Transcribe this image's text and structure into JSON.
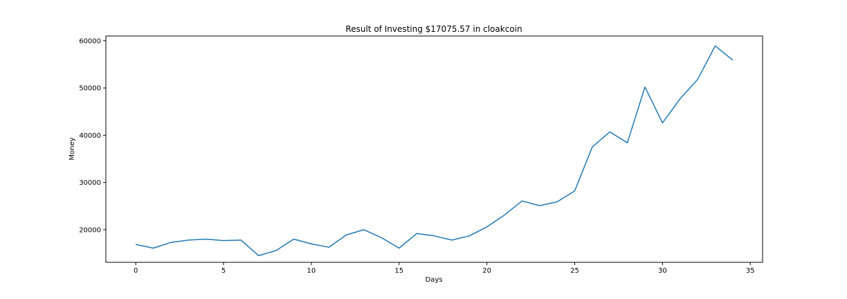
{
  "chart_data": {
    "type": "line",
    "title": "Result of Investing $17075.57 in cloakcoin",
    "xlabel": "Days",
    "ylabel": "Money",
    "xlim": [
      -1.7,
      35.7
    ],
    "ylim": [
      13100,
      61000
    ],
    "xticks": [
      0,
      5,
      10,
      15,
      20,
      25,
      30,
      35
    ],
    "yticks": [
      20000,
      30000,
      40000,
      50000,
      60000
    ],
    "grid": false,
    "series": [
      {
        "color": "#1f77b4",
        "x": [
          0,
          1,
          2,
          3,
          4,
          5,
          6,
          7,
          8,
          9,
          10,
          11,
          12,
          13,
          14,
          15,
          16,
          17,
          18,
          19,
          20,
          21,
          22,
          23,
          24,
          25,
          26,
          27,
          28,
          29,
          30,
          31,
          32,
          33,
          34
        ],
        "y": [
          16900,
          16100,
          17300,
          17800,
          18000,
          17700,
          17800,
          14500,
          15600,
          18000,
          17000,
          16300,
          18900,
          20000,
          18300,
          16100,
          19200,
          18700,
          17800,
          18700,
          20600,
          23100,
          26100,
          25100,
          25900,
          28200,
          37500,
          40700,
          38400,
          50200,
          42600,
          47700,
          51800,
          58900,
          55900
        ]
      }
    ]
  }
}
